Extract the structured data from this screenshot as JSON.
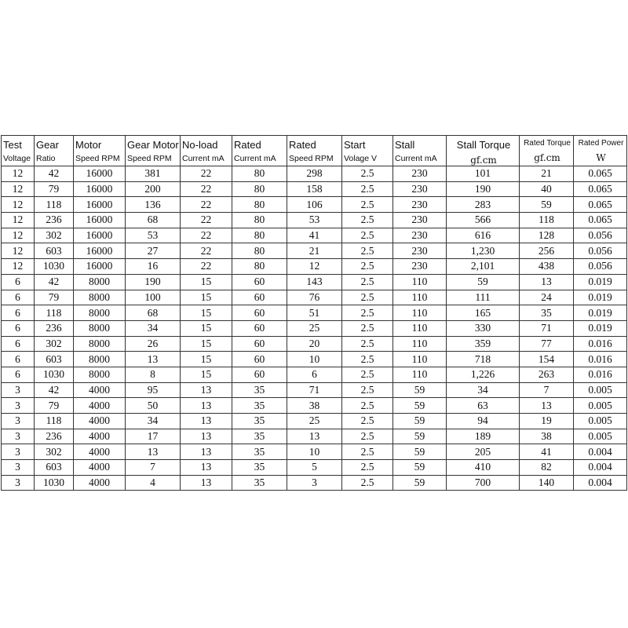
{
  "headers": [
    {
      "line1": "Test",
      "line2": "Voltage"
    },
    {
      "line1": "Gear",
      "line2": "Ratio"
    },
    {
      "line1": "Motor",
      "line2": "Speed RPM"
    },
    {
      "line1": "Gear Motor",
      "line2": "Speed RPM"
    },
    {
      "line1": "No-load",
      "line2": "Current mA"
    },
    {
      "line1": "Rated",
      "line2": "Current mA"
    },
    {
      "line1": "Rated",
      "line2": "Speed RPM"
    },
    {
      "line1": "Start",
      "line2": "Volage V"
    },
    {
      "line1": "Stall",
      "line2": "Current mA"
    },
    {
      "line1": "Stall Torque",
      "line2": "gf.cm"
    },
    {
      "line1": "Rated Torque",
      "line2": "gf.cm"
    },
    {
      "line1": "Rated Power",
      "line2": "W"
    }
  ],
  "rows": [
    [
      "12",
      "42",
      "16000",
      "381",
      "22",
      "80",
      "298",
      "2.5",
      "230",
      "101",
      "21",
      "0.065"
    ],
    [
      "12",
      "79",
      "16000",
      "200",
      "22",
      "80",
      "158",
      "2.5",
      "230",
      "190",
      "40",
      "0.065"
    ],
    [
      "12",
      "118",
      "16000",
      "136",
      "22",
      "80",
      "106",
      "2.5",
      "230",
      "283",
      "59",
      "0.065"
    ],
    [
      "12",
      "236",
      "16000",
      "68",
      "22",
      "80",
      "53",
      "2.5",
      "230",
      "566",
      "118",
      "0.065"
    ],
    [
      "12",
      "302",
      "16000",
      "53",
      "22",
      "80",
      "41",
      "2.5",
      "230",
      "616",
      "128",
      "0.056"
    ],
    [
      "12",
      "603",
      "16000",
      "27",
      "22",
      "80",
      "21",
      "2.5",
      "230",
      "1,230",
      "256",
      "0.056"
    ],
    [
      "12",
      "1030",
      "16000",
      "16",
      "22",
      "80",
      "12",
      "2.5",
      "230",
      "2,101",
      "438",
      "0.056"
    ],
    [
      "6",
      "42",
      "8000",
      "190",
      "15",
      "60",
      "143",
      "2.5",
      "110",
      "59",
      "13",
      "0.019"
    ],
    [
      "6",
      "79",
      "8000",
      "100",
      "15",
      "60",
      "76",
      "2.5",
      "110",
      "111",
      "24",
      "0.019"
    ],
    [
      "6",
      "118",
      "8000",
      "68",
      "15",
      "60",
      "51",
      "2.5",
      "110",
      "165",
      "35",
      "0.019"
    ],
    [
      "6",
      "236",
      "8000",
      "34",
      "15",
      "60",
      "25",
      "2.5",
      "110",
      "330",
      "71",
      "0.019"
    ],
    [
      "6",
      "302",
      "8000",
      "26",
      "15",
      "60",
      "20",
      "2.5",
      "110",
      "359",
      "77",
      "0.016"
    ],
    [
      "6",
      "603",
      "8000",
      "13",
      "15",
      "60",
      "10",
      "2.5",
      "110",
      "718",
      "154",
      "0.016"
    ],
    [
      "6",
      "1030",
      "8000",
      "8",
      "15",
      "60",
      "6",
      "2.5",
      "110",
      "1,226",
      "263",
      "0.016"
    ],
    [
      "3",
      "42",
      "4000",
      "95",
      "13",
      "35",
      "71",
      "2.5",
      "59",
      "34",
      "7",
      "0.005"
    ],
    [
      "3",
      "79",
      "4000",
      "50",
      "13",
      "35",
      "38",
      "2.5",
      "59",
      "63",
      "13",
      "0.005"
    ],
    [
      "3",
      "118",
      "4000",
      "34",
      "13",
      "35",
      "25",
      "2.5",
      "59",
      "94",
      "19",
      "0.005"
    ],
    [
      "3",
      "236",
      "4000",
      "17",
      "13",
      "35",
      "13",
      "2.5",
      "59",
      "189",
      "38",
      "0.005"
    ],
    [
      "3",
      "302",
      "4000",
      "13",
      "13",
      "35",
      "10",
      "2.5",
      "59",
      "205",
      "41",
      "0.004"
    ],
    [
      "3",
      "603",
      "4000",
      "7",
      "13",
      "35",
      "5",
      "2.5",
      "59",
      "410",
      "82",
      "0.004"
    ],
    [
      "3",
      "1030",
      "4000",
      "4",
      "13",
      "35",
      "3",
      "2.5",
      "59",
      "700",
      "140",
      "0.004"
    ]
  ]
}
